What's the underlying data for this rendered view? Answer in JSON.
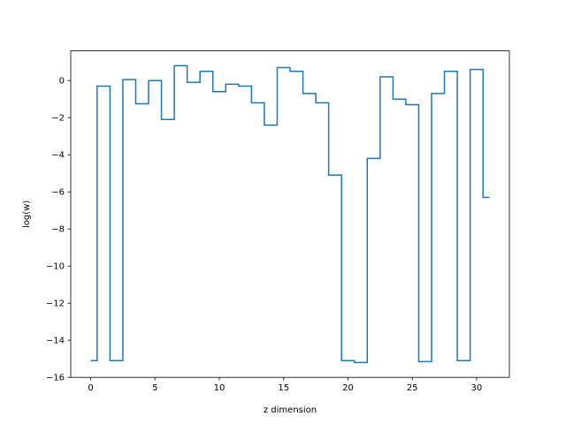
{
  "chart_data": {
    "type": "line",
    "step": "mid",
    "title": "",
    "xlabel": "z dimension",
    "ylabel": "log(w)",
    "xlim": [
      -1.55,
      32.55
    ],
    "ylim": [
      -16.0,
      1.6
    ],
    "xticks": [
      0,
      5,
      10,
      15,
      20,
      25,
      30
    ],
    "xtick_labels": [
      "0",
      "5",
      "10",
      "15",
      "20",
      "25",
      "30"
    ],
    "yticks": [
      0,
      -2,
      -4,
      -6,
      -8,
      -10,
      -12,
      -14,
      -16
    ],
    "ytick_labels": [
      "0",
      "−2",
      "−4",
      "−6",
      "−8",
      "−10",
      "−12",
      "−14",
      "−16"
    ],
    "grid": false,
    "line_color": "#1f77b4",
    "series": [
      {
        "x": [
          0,
          1,
          2,
          3,
          4,
          5,
          6,
          7,
          8,
          9,
          10,
          11,
          12,
          13,
          14,
          15,
          16,
          17,
          18,
          19,
          20,
          21,
          22,
          23,
          24,
          25,
          26,
          27,
          28,
          29,
          30,
          31
        ],
        "values": [
          -15.1,
          -0.3,
          -15.1,
          0.05,
          -1.25,
          0.0,
          -2.1,
          0.8,
          -0.1,
          0.5,
          -0.6,
          -0.2,
          -0.3,
          -1.2,
          -2.4,
          0.7,
          0.5,
          -0.7,
          -1.2,
          -5.1,
          -15.1,
          -15.2,
          -4.2,
          0.2,
          -1.0,
          -1.3,
          -15.15,
          -0.7,
          0.5,
          -15.1,
          0.6,
          -6.3
        ]
      }
    ]
  }
}
